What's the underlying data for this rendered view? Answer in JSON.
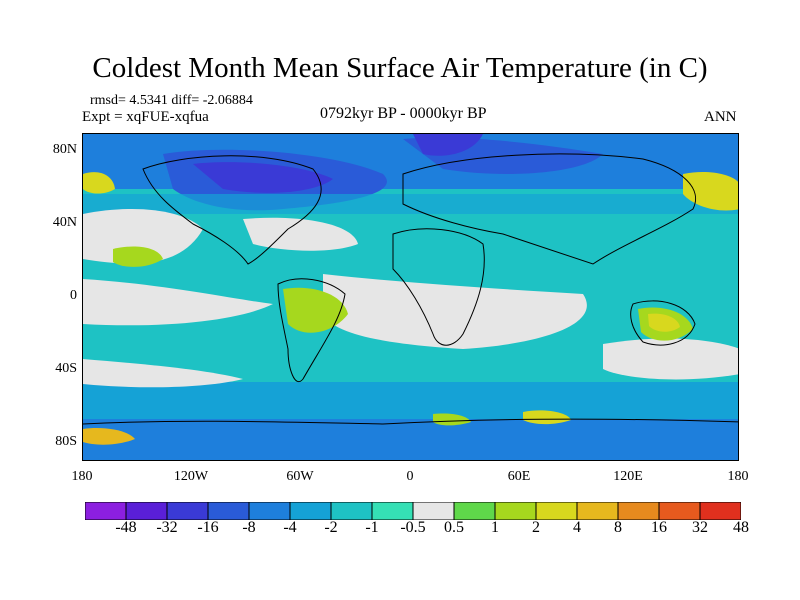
{
  "title": "Coldest Month Mean Surface Air Temperature (in C)",
  "stats": {
    "line1": "rmsd= 4.5341 diff= -2.06884",
    "line2": "Expt = xqFUE-xqfua"
  },
  "period": "0792kyr BP - 0000kyr BP",
  "season": "ANN",
  "lat_labels": [
    "80N",
    "40N",
    "0",
    "40S",
    "80S"
  ],
  "lon_labels": [
    "180",
    "120W",
    "60W",
    "0",
    "60E",
    "120E",
    "180"
  ],
  "colorbar": {
    "labels": [
      "-48",
      "-32",
      "-16",
      "-8",
      "-4",
      "-2",
      "-1",
      "-0.5",
      "0.5",
      "1",
      "2",
      "4",
      "8",
      "16",
      "32",
      "48"
    ],
    "colors": [
      "#8c1fe0",
      "#5a1fd8",
      "#3a3ad6",
      "#2a5bd8",
      "#1e7fdc",
      "#15a2d6",
      "#1ec2c4",
      "#35e0b5",
      "#e6e6e6",
      "#5fd84a",
      "#a6d81e",
      "#d8d81e",
      "#e6b81e",
      "#e68a1e",
      "#e65a1e",
      "#e0301e"
    ]
  },
  "palette": {
    "neutral": "#e6e6e6",
    "cyan": "#1ec2c4",
    "teal": "#35e0b5",
    "lightblue": "#15a2d6",
    "blue": "#1e7fdc",
    "darkblue": "#2a5bd8",
    "navy": "#3a3ad6",
    "green": "#a6d81e",
    "yellow": "#d8d81e",
    "orange": "#e6b81e"
  }
}
